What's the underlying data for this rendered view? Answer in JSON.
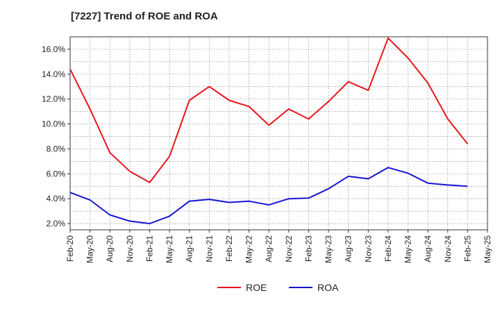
{
  "chart_data": {
    "type": "line",
    "title": "[7227]  Trend of ROE and ROA",
    "xlabel": "",
    "ylabel": "",
    "x": [
      "Feb-20",
      "May-20",
      "Aug-20",
      "Nov-20",
      "Feb-21",
      "May-21",
      "Aug-21",
      "Nov-21",
      "Feb-22",
      "May-22",
      "Aug-22",
      "Nov-22",
      "Feb-23",
      "May-23",
      "Aug-23",
      "Nov-23",
      "Feb-24",
      "May-24",
      "Aug-24",
      "Nov-24",
      "Feb-25",
      "May-25"
    ],
    "y_ticks": [
      "2.0%",
      "4.0%",
      "6.0%",
      "8.0%",
      "10.0%",
      "12.0%",
      "14.0%",
      "16.0%"
    ],
    "ylim": [
      1.5,
      17.0
    ],
    "grid": true,
    "legend_position": "bottom",
    "series": [
      {
        "name": "ROE",
        "color": "#e8141b",
        "values": [
          14.4,
          11.2,
          7.7,
          6.2,
          5.3,
          7.4,
          11.9,
          13.0,
          11.9,
          11.4,
          9.9,
          11.2,
          10.4,
          11.8,
          13.4,
          12.7,
          16.9,
          15.3,
          13.3,
          10.4,
          8.4,
          null
        ]
      },
      {
        "name": "ROA",
        "color": "#1414d2",
        "values": [
          4.5,
          3.9,
          2.7,
          2.2,
          2.0,
          2.6,
          3.8,
          3.95,
          3.7,
          3.8,
          3.5,
          4.0,
          4.05,
          4.8,
          5.8,
          5.6,
          6.5,
          6.05,
          5.25,
          5.1,
          5.0,
          null
        ]
      }
    ]
  }
}
